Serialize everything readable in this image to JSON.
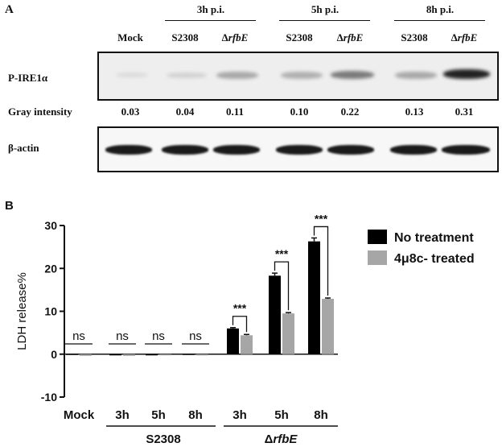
{
  "panel_a": {
    "letter": "A",
    "time_groups": [
      {
        "label": "3h  p.i."
      },
      {
        "label": "5h p.i."
      },
      {
        "label": "8h p.i."
      }
    ],
    "lanes": [
      {
        "prefix": "Mock",
        "italic": ""
      },
      {
        "prefix": "S2308",
        "italic": ""
      },
      {
        "prefix": "Δ",
        "italic": "rfbE"
      },
      {
        "prefix": "S2308",
        "italic": ""
      },
      {
        "prefix": "Δ",
        "italic": "rfbE"
      },
      {
        "prefix": "S2308",
        "italic": ""
      },
      {
        "prefix": "Δ",
        "italic": "rfbE"
      }
    ],
    "p_ire1a_label": "P-IRE1α",
    "gray_label": "Gray intensity",
    "gray_values": [
      "0.03",
      "0.04",
      "0.11",
      "0.10",
      "0.22",
      "0.13",
      "0.31"
    ],
    "actin_label": "β-actin"
  },
  "panel_b": {
    "letter": "B"
  },
  "chart_data": {
    "type": "bar",
    "ylabel": "LDH release%",
    "ylim": [
      -10,
      30
    ],
    "yticks": [
      "-10",
      "0",
      "10",
      "20",
      "30"
    ],
    "categories": [
      "Mock",
      "3h",
      "5h",
      "8h",
      "3h",
      "5h",
      "8h"
    ],
    "groups": [
      {
        "label": "S2308",
        "prefix": "",
        "italic": ""
      },
      {
        "label": "ΔrfbE",
        "prefix": "Δ",
        "italic": "rfbE"
      }
    ],
    "series": [
      {
        "name": "No treatment",
        "color": "#000000",
        "values": [
          0.1,
          -0.2,
          -0.2,
          0.1,
          6.0,
          18.3,
          26.3
        ],
        "errors": [
          0.1,
          0.1,
          0.1,
          0.1,
          0.2,
          0.6,
          0.8
        ]
      },
      {
        "name": "4μ8c- treated",
        "color": "#a6a6a6",
        "values": [
          -0.4,
          -0.4,
          -0.2,
          -0.3,
          4.4,
          9.5,
          12.9
        ],
        "errors": [
          0.1,
          0.1,
          0.1,
          0.1,
          0.2,
          0.2,
          0.2
        ]
      }
    ],
    "annotations": [
      "ns",
      "ns",
      "ns",
      "ns",
      "***",
      "***",
      "***"
    ],
    "legend_position": "top-right"
  }
}
